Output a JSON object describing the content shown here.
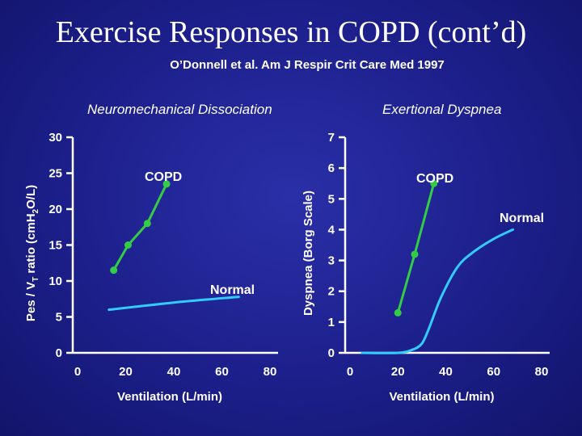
{
  "slide": {
    "title": "Exercise Responses in COPD (cont’d)",
    "citation": "O’Donnell et al.  Am J Respir Crit Care Med 1997"
  },
  "colors": {
    "copd": "#33cc44",
    "normal": "#33ccff",
    "axis": "#ffffff"
  },
  "chart_data": [
    {
      "type": "line",
      "title": "Neuromechanical Dissociation",
      "xlabel": "Ventilation  (L/min)",
      "ylabel_parts": [
        "Pes / V",
        "T",
        " ratio  (cmH",
        "2",
        "O/L)"
      ],
      "xlim": [
        0,
        80
      ],
      "ylim": [
        0,
        30
      ],
      "xticks": [
        0,
        20,
        40,
        60,
        80
      ],
      "yticks": [
        0,
        5,
        10,
        15,
        20,
        25,
        30
      ],
      "series": [
        {
          "name": "COPD",
          "color": "#33cc44",
          "markers": true,
          "x": [
            15,
            21,
            29,
            37
          ],
          "y": [
            11.5,
            15,
            18,
            23.5
          ]
        },
        {
          "name": "Normal",
          "color": "#33ccff",
          "markers": false,
          "x": [
            13,
            40,
            67
          ],
          "y": [
            6,
            7,
            7.8
          ]
        }
      ]
    },
    {
      "type": "line",
      "title": "Exertional Dyspnea",
      "xlabel": "Ventilation  (L/min)",
      "ylabel": "Dyspnea  (Borg Scale)",
      "xlim": [
        0,
        80
      ],
      "ylim": [
        0,
        7
      ],
      "xticks": [
        0,
        20,
        40,
        60,
        80
      ],
      "yticks": [
        0,
        1,
        2,
        3,
        4,
        5,
        6,
        7
      ],
      "series": [
        {
          "name": "COPD",
          "color": "#33cc44",
          "markers": true,
          "x": [
            20,
            27,
            35
          ],
          "y": [
            1.3,
            3.2,
            5.5
          ]
        },
        {
          "name": "Normal",
          "color": "#33ccff",
          "markers": false,
          "x": [
            5,
            20,
            26,
            30,
            33,
            38,
            45,
            52,
            60,
            68
          ],
          "y": [
            0,
            0,
            0.1,
            0.3,
            0.8,
            1.8,
            2.8,
            3.3,
            3.7,
            4
          ]
        }
      ]
    }
  ]
}
